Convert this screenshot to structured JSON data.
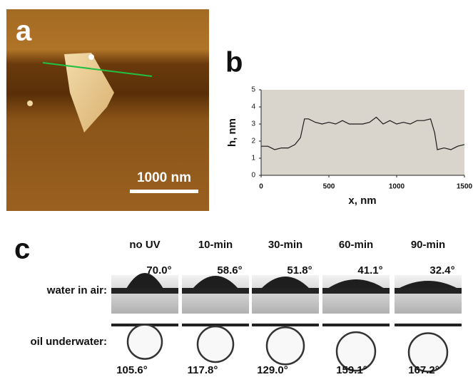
{
  "panel_a": {
    "label": "a",
    "scale_bar": "1000 nm"
  },
  "panel_b_label": "b",
  "chart_data": {
    "type": "line",
    "x_label": "x, nm",
    "y_label": "h, nm",
    "x": [
      0,
      50,
      100,
      150,
      200,
      250,
      290,
      320,
      350,
      400,
      450,
      500,
      550,
      600,
      650,
      700,
      750,
      800,
      850,
      900,
      950,
      1000,
      1050,
      1100,
      1150,
      1200,
      1250,
      1280,
      1300,
      1350,
      1400,
      1450,
      1500
    ],
    "series": [
      {
        "color": "#1a1a1a",
        "values": [
          1.7,
          1.7,
          1.5,
          1.6,
          1.6,
          1.8,
          2.2,
          3.3,
          3.3,
          3.1,
          3.0,
          3.1,
          3.0,
          3.2,
          3.0,
          3.0,
          3.0,
          3.1,
          3.4,
          3.0,
          3.2,
          3.0,
          3.1,
          3.0,
          3.2,
          3.2,
          3.3,
          2.5,
          1.5,
          1.6,
          1.5,
          1.7,
          1.8
        ]
      }
    ],
    "xlim": [
      0,
      1500
    ],
    "xticks": [
      0,
      500,
      1000,
      1500
    ],
    "ylim": [
      0,
      5
    ],
    "yticks": [
      0,
      1,
      2,
      3,
      4,
      5
    ]
  },
  "panel_c": {
    "label": "c",
    "columns": [
      "no UV",
      "10-min",
      "30-min",
      "60-min",
      "90-min"
    ],
    "rows": [
      {
        "label": "water in air:",
        "angles": [
          "70.0°",
          "58.6°",
          "51.8°",
          "41.1°",
          "32.4°"
        ]
      },
      {
        "label": "oil underwater:",
        "angles": [
          "105.6°",
          "117.8°",
          "129.0°",
          "159.1°",
          "167.2°"
        ]
      }
    ]
  }
}
